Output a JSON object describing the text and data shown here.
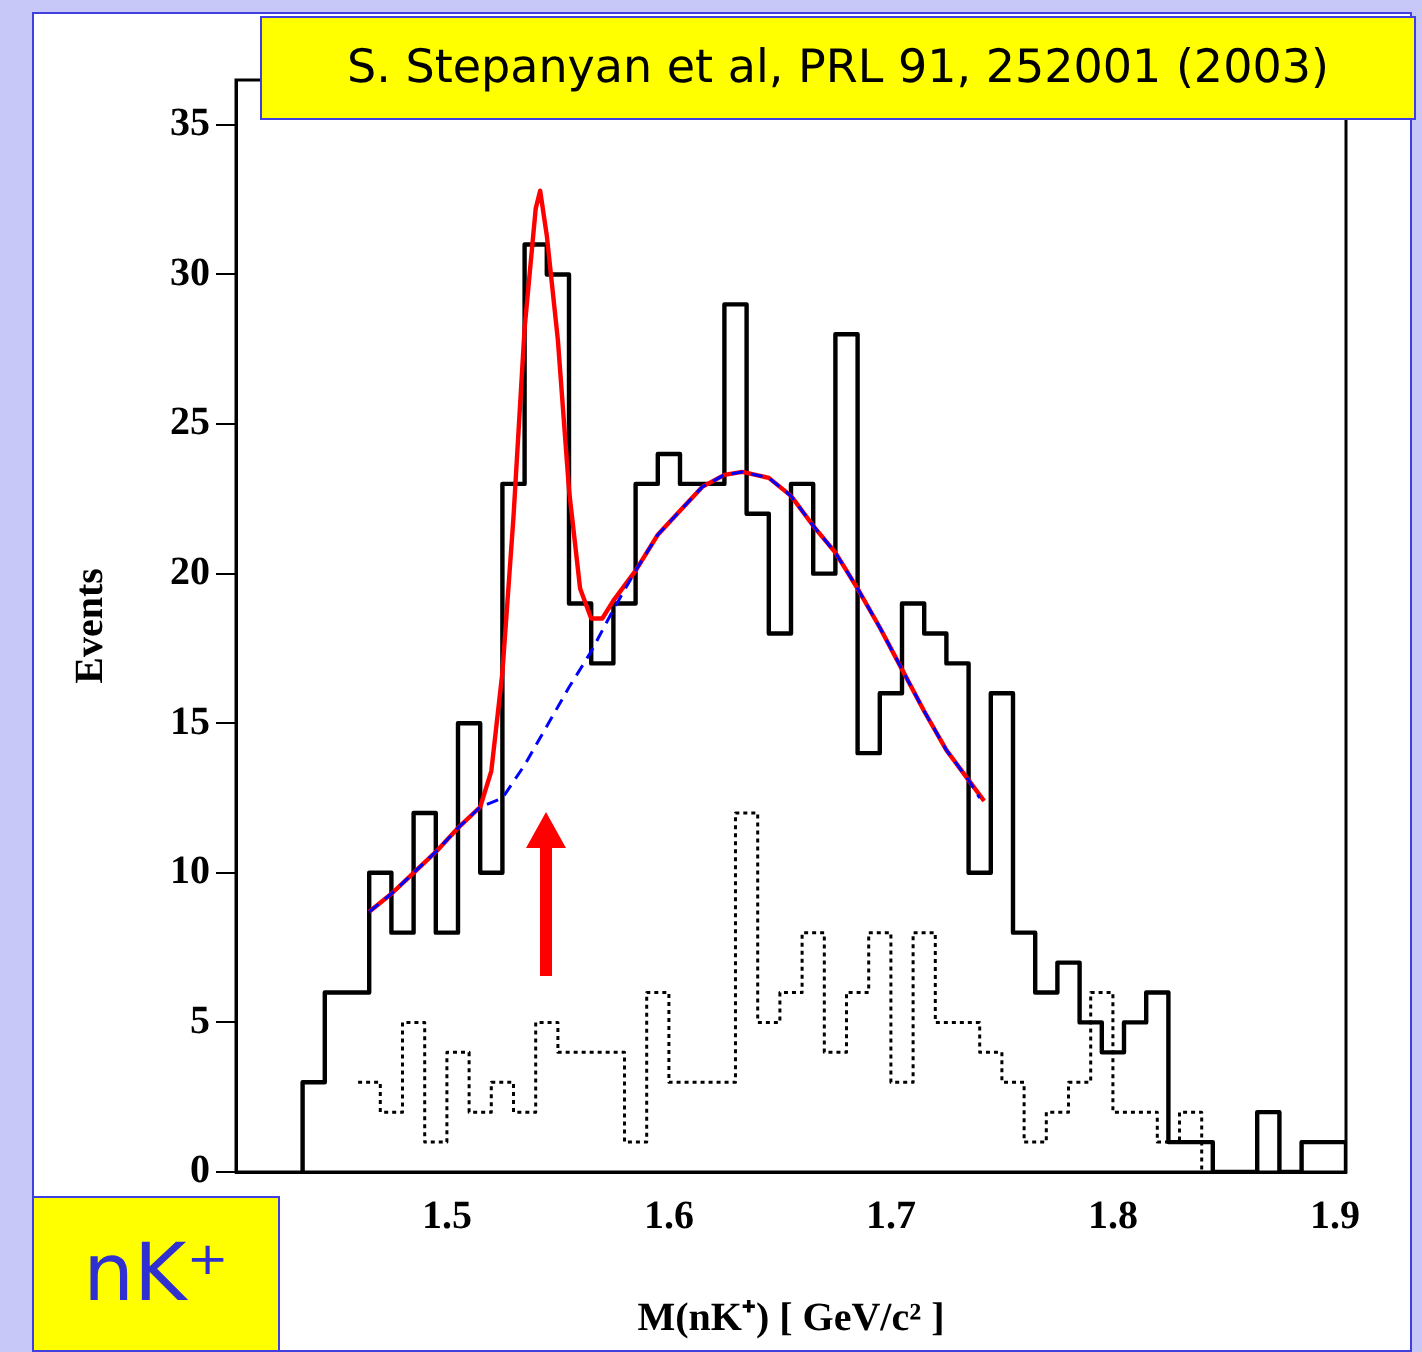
{
  "chart_data": {
    "type": "histogram",
    "xlabel": "M(nK⁺) [ GeV/c² ]",
    "ylabel": "Events",
    "xlim": [
      1.405,
      1.905
    ],
    "xticks": [
      1.5,
      1.6,
      1.7,
      1.8,
      1.9
    ],
    "ylim": [
      0,
      36.5
    ],
    "yticks": [
      0,
      5,
      10,
      15,
      20,
      25,
      30,
      35
    ],
    "annotations": [
      "S. Stepanyan et al,  PRL 91, 252001 (2003)",
      "nK⁺"
    ],
    "bins": [
      1.435,
      1.445,
      1.455,
      1.465,
      1.475,
      1.485,
      1.495,
      1.505,
      1.515,
      1.525,
      1.535,
      1.545,
      1.555,
      1.565,
      1.575,
      1.585,
      1.595,
      1.605,
      1.615,
      1.625,
      1.635,
      1.645,
      1.655,
      1.665,
      1.675,
      1.685,
      1.695,
      1.705,
      1.715,
      1.725,
      1.735,
      1.745,
      1.755,
      1.765,
      1.775,
      1.785,
      1.795,
      1.805,
      1.815,
      1.825,
      1.835,
      1.845,
      1.855,
      1.865,
      1.875,
      1.885,
      1.895,
      1.905
    ],
    "series": [
      {
        "color": "#000000",
        "line_style": "solid",
        "values": [
          3,
          6,
          6,
          10,
          8,
          12,
          8,
          15,
          10,
          23,
          31,
          30,
          19,
          17,
          19,
          23,
          24,
          23,
          23,
          29,
          22,
          18,
          23,
          20,
          28,
          14,
          16,
          19,
          18,
          17,
          10,
          16,
          8,
          6,
          7,
          5,
          4,
          5,
          6,
          1,
          1,
          0,
          0,
          2,
          0,
          1,
          1
        ]
      },
      {
        "type": "step",
        "color": "#000000",
        "line_style": "dotted",
        "x": [
          1.46,
          1.47,
          1.48,
          1.49,
          1.5,
          1.51,
          1.52,
          1.53,
          1.54,
          1.55,
          1.56,
          1.57,
          1.58,
          1.59,
          1.6,
          1.61,
          1.62,
          1.63,
          1.64,
          1.65,
          1.66,
          1.67,
          1.68,
          1.69,
          1.7,
          1.71,
          1.72,
          1.73,
          1.74,
          1.75,
          1.76,
          1.77,
          1.78,
          1.79,
          1.8,
          1.81,
          1.82,
          1.83,
          1.84
        ],
        "values": [
          3,
          2,
          5,
          1,
          4,
          2,
          3,
          2,
          5,
          4,
          4,
          4,
          1,
          6,
          3,
          3,
          3,
          12,
          5,
          6,
          8,
          4,
          6,
          8,
          3,
          8,
          5,
          5,
          4,
          3,
          1,
          2,
          3,
          6,
          2,
          2,
          1,
          2,
          0
        ]
      },
      {
        "type": "line",
        "color": "#ff0000",
        "line_style": "solid",
        "x": [
          1.465,
          1.475,
          1.485,
          1.495,
          1.505,
          1.515,
          1.52,
          1.525,
          1.53,
          1.535,
          1.54,
          1.542,
          1.545,
          1.55,
          1.555,
          1.56,
          1.565,
          1.57,
          1.575,
          1.585,
          1.595,
          1.605,
          1.615,
          1.625,
          1.633,
          1.645,
          1.655,
          1.665,
          1.675,
          1.685,
          1.695,
          1.705,
          1.715,
          1.725,
          1.735,
          1.742
        ],
        "values": [
          8.7,
          9.3,
          10,
          10.7,
          11.5,
          12.2,
          13.4,
          16.7,
          21.9,
          28.2,
          32.2,
          32.8,
          31.3,
          27.8,
          22.8,
          19.5,
          18.5,
          18.5,
          19.1,
          20.1,
          21.3,
          22.1,
          22.9,
          23.3,
          23.4,
          23.2,
          22.6,
          21.6,
          20.7,
          19.5,
          18.2,
          16.8,
          15.4,
          14.1,
          13.1,
          12.4
        ]
      },
      {
        "type": "line",
        "color": "#0000ff",
        "line_style": "dashed",
        "x": [
          1.465,
          1.475,
          1.485,
          1.495,
          1.505,
          1.515,
          1.525,
          1.535,
          1.545,
          1.555,
          1.565,
          1.575,
          1.585,
          1.595,
          1.605,
          1.615,
          1.625,
          1.633,
          1.645,
          1.655,
          1.665,
          1.675,
          1.685,
          1.695,
          1.705,
          1.715,
          1.725,
          1.735,
          1.74
        ],
        "values": [
          8.7,
          9.3,
          10,
          10.7,
          11.5,
          12.2,
          12.5,
          13.6,
          14.9,
          16.2,
          17.4,
          18.8,
          20.1,
          21.3,
          22.1,
          22.9,
          23.3,
          23.4,
          23.2,
          22.6,
          21.6,
          20.7,
          19.5,
          18.2,
          16.8,
          15.4,
          14.1,
          13.1,
          12.5
        ]
      }
    ]
  }
}
